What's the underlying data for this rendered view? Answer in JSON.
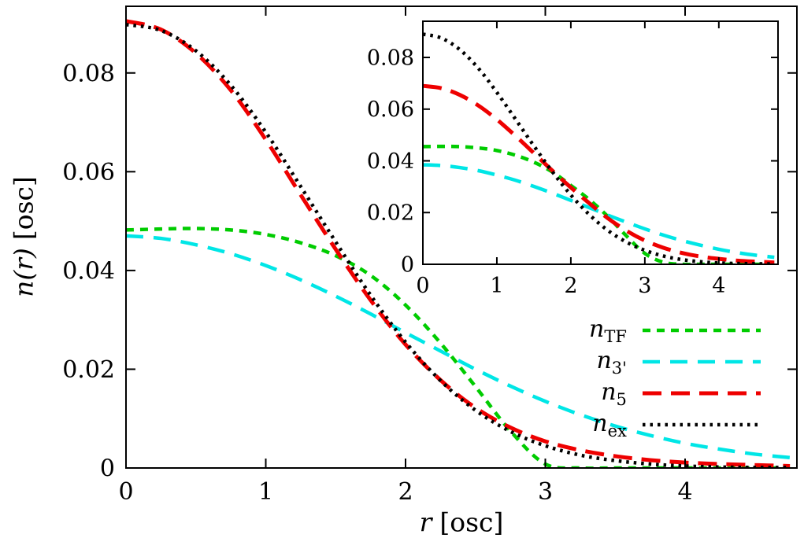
{
  "figure": {
    "background": "#ffffff",
    "frame_color": "#000000",
    "text_color": "#000000"
  },
  "axes": {
    "x_label_math": "r",
    "x_label_unit": "[osc]",
    "y_label_math": "n(r)",
    "y_label_unit": "[osc]"
  },
  "legend": {
    "items": [
      {
        "label_main": "n",
        "label_sub": "TF",
        "series": "n_TF",
        "color": "#00cc00",
        "dash": "10 8",
        "width": 4.5
      },
      {
        "label_main": "n",
        "label_sub": "3'",
        "series": "n_3'",
        "color": "#00e6e6",
        "dash": "22 13",
        "width": 4.5
      },
      {
        "label_main": "n",
        "label_sub": "5",
        "series": "n_5",
        "color": "#ee0000",
        "dash": "24 12",
        "width": 5
      },
      {
        "label_main": "n",
        "label_sub": "ex",
        "series": "n_ex",
        "color": "#000000",
        "dash": "3.5 6",
        "width": 4.5
      }
    ]
  },
  "chart_data": [
    {
      "id": "main",
      "type": "line",
      "title": "",
      "xlabel": "r [osc]",
      "ylabel": "n(r) [osc]",
      "xlim": [
        0,
        4.8
      ],
      "ylim": [
        0,
        0.0935
      ],
      "grid": false,
      "xticks": [
        0,
        1,
        2,
        3,
        4
      ],
      "xtick_labels": [
        "0",
        "1",
        "2",
        "3",
        "4"
      ],
      "yticks": [
        0,
        0.02,
        0.04,
        0.06,
        0.08
      ],
      "ytick_labels": [
        "0",
        "0.02",
        "0.04",
        "0.06",
        "0.08"
      ],
      "x": [
        0,
        0.25,
        0.5,
        0.75,
        1,
        1.25,
        1.5,
        1.75,
        2,
        2.25,
        2.5,
        2.75,
        3,
        3.25,
        3.5,
        3.75,
        4,
        4.25,
        4.5,
        4.75
      ],
      "series": [
        {
          "name": "n_TF",
          "color": "#00cc00",
          "dash": "10 8",
          "width": 4.5,
          "values": [
            0.0482,
            0.0484,
            0.0485,
            0.0482,
            0.0473,
            0.0456,
            0.043,
            0.039,
            0.033,
            0.0253,
            0.0165,
            0.0075,
            0.0008,
            0,
            0,
            0,
            0,
            0,
            0,
            0
          ]
        },
        {
          "name": "n_3'",
          "color": "#00e6e6",
          "dash": "22 13",
          "width": 4.5,
          "values": [
            0.047,
            0.0465,
            0.0452,
            0.0434,
            0.041,
            0.0381,
            0.0348,
            0.0312,
            0.0274,
            0.0237,
            0.02,
            0.0166,
            0.0135,
            0.0108,
            0.0085,
            0.0066,
            0.005,
            0.0038,
            0.0028,
            0.0021
          ]
        },
        {
          "name": "n_5",
          "color": "#ee0000",
          "dash": "24 12",
          "width": 5,
          "values": [
            0.0905,
            0.0888,
            0.084,
            0.0765,
            0.0665,
            0.0553,
            0.0443,
            0.034,
            0.025,
            0.0178,
            0.0122,
            0.0082,
            0.0054,
            0.0036,
            0.0024,
            0.0016,
            0.0011,
            0.0008,
            0.0006,
            0.0004
          ]
        },
        {
          "name": "n_ex",
          "color": "#000000",
          "dash": "3.5 6",
          "width": 4.5,
          "values": [
            0.0898,
            0.0886,
            0.0845,
            0.0775,
            0.068,
            0.057,
            0.0458,
            0.035,
            0.0255,
            0.0177,
            0.0117,
            0.0074,
            0.0045,
            0.0026,
            0.0015,
            0.0008,
            0.0004,
            0.0002,
            0.0001,
            0.0001
          ]
        }
      ]
    },
    {
      "id": "inset",
      "type": "line",
      "title": "",
      "xlabel": "",
      "ylabel": "",
      "xlim": [
        0,
        4.8
      ],
      "ylim": [
        0,
        0.094
      ],
      "grid": false,
      "xticks": [
        0,
        1,
        2,
        3,
        4
      ],
      "xtick_labels": [
        "0",
        "1",
        "2",
        "3",
        "4"
      ],
      "yticks": [
        0,
        0.02,
        0.04,
        0.06,
        0.08
      ],
      "ytick_labels": [
        "0",
        "0.02",
        "0.04",
        "0.06",
        "0.08"
      ],
      "x": [
        0,
        0.25,
        0.5,
        0.75,
        1,
        1.25,
        1.5,
        1.75,
        2,
        2.25,
        2.5,
        2.75,
        3,
        3.25,
        3.5,
        3.75,
        4,
        4.25,
        4.5,
        4.75
      ],
      "series": [
        {
          "name": "n_TF",
          "color": "#00cc00",
          "dash": "10 8",
          "width": 4.5,
          "values": [
            0.0455,
            0.0456,
            0.0455,
            0.045,
            0.044,
            0.0422,
            0.0395,
            0.0357,
            0.0305,
            0.025,
            0.0185,
            0.011,
            0.0042,
            0.0008,
            0,
            0,
            0,
            0,
            0,
            0
          ]
        },
        {
          "name": "n_3'",
          "color": "#00e6e6",
          "dash": "22 13",
          "width": 4.5,
          "values": [
            0.0385,
            0.0382,
            0.0374,
            0.0362,
            0.0345,
            0.0325,
            0.0301,
            0.0275,
            0.0247,
            0.0219,
            0.019,
            0.0163,
            0.0137,
            0.0113,
            0.0092,
            0.0074,
            0.0058,
            0.0045,
            0.0035,
            0.0027
          ]
        },
        {
          "name": "n_5",
          "color": "#ee0000",
          "dash": "24 12",
          "width": 5,
          "values": [
            0.069,
            0.0681,
            0.0655,
            0.0614,
            0.056,
            0.0497,
            0.043,
            0.0362,
            0.0297,
            0.0236,
            0.0178,
            0.013,
            0.0092,
            0.0064,
            0.0044,
            0.003,
            0.0021,
            0.0014,
            0.001,
            0.0007
          ]
        },
        {
          "name": "n_ex",
          "color": "#000000",
          "dash": "3.5 6",
          "width": 4.5,
          "values": [
            0.089,
            0.0875,
            0.083,
            0.0758,
            0.0665,
            0.0562,
            0.0458,
            0.0358,
            0.0268,
            0.0192,
            0.0131,
            0.0086,
            0.0054,
            0.0032,
            0.0018,
            0.001,
            0.0005,
            0.0003,
            0.0002,
            0.0001
          ]
        }
      ]
    }
  ]
}
